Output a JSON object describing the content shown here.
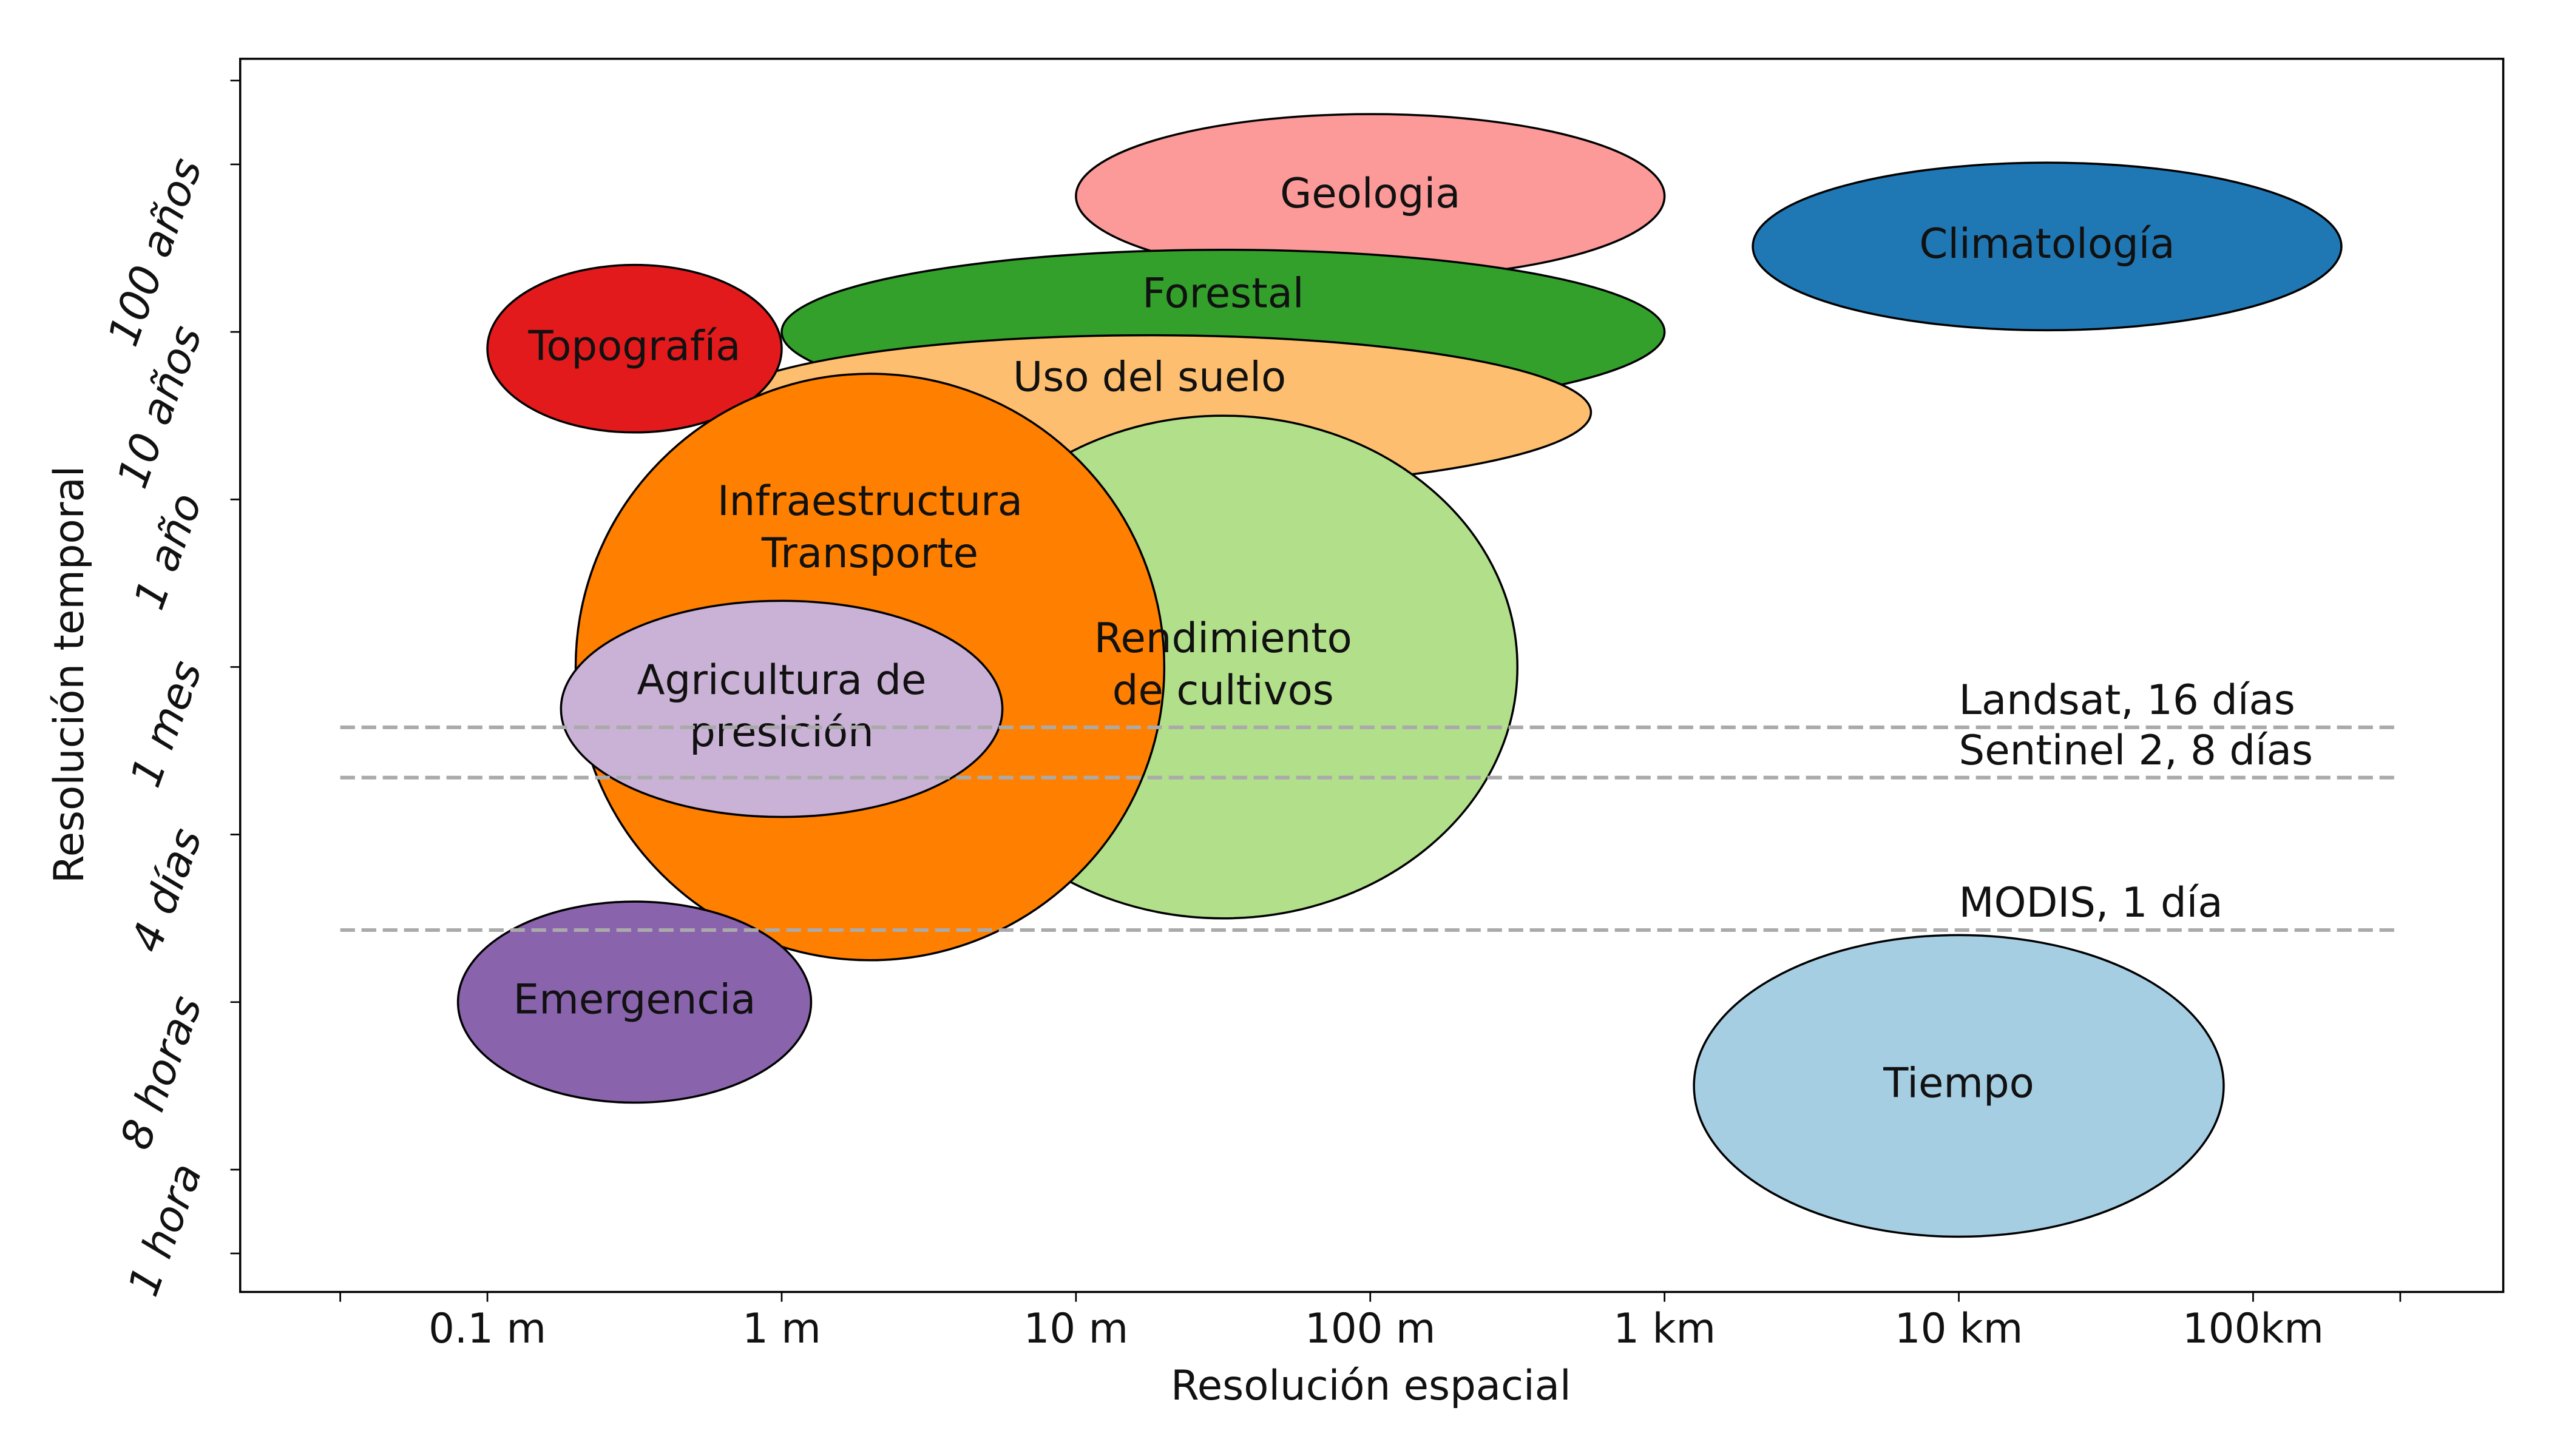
{
  "chart_data": {
    "type": "ellipse",
    "x_label": "Resolución espacial",
    "y_label": "Resolución temporal",
    "xlim": [
      -1.84,
      5.85
    ],
    "ylim": [
      -0.73,
      6.63
    ],
    "xticks": [
      {
        "value": -1,
        "label": "0.1 m"
      },
      {
        "value": 0,
        "label": "1 m"
      },
      {
        "value": 1,
        "label": "10 m"
      },
      {
        "value": 2,
        "label": "100 m"
      },
      {
        "value": 3,
        "label": "1 km"
      },
      {
        "value": 4,
        "label": "10 km"
      },
      {
        "value": 5,
        "label": "100km"
      }
    ],
    "xminorticks": [
      -1.5,
      5.5
    ],
    "yticks": [
      {
        "value": 0,
        "label": "1 hora"
      },
      {
        "value": 1,
        "label": "8 horas"
      },
      {
        "value": 2,
        "label": "4 días"
      },
      {
        "value": 3,
        "label": "1 mes"
      },
      {
        "value": 4,
        "label": "1 año"
      },
      {
        "value": 5,
        "label": "10 años"
      },
      {
        "value": 6,
        "label": "100 años"
      }
    ],
    "yminorticks": [
      -0.5,
      6.5
    ],
    "ellipses": [
      {
        "label": [
          "Geologia"
        ],
        "x": 2,
        "y": 5.81,
        "width": 2,
        "height": 0.98,
        "color": "#fb9a99"
      },
      {
        "label": [
          "Climatología"
        ],
        "x": 4.3,
        "y": 5.51,
        "width": 2,
        "height": 1.0,
        "color": "#1f78b4"
      },
      {
        "label": [
          "Forestal"
        ],
        "x": 1.5,
        "y": 5.0,
        "width": 3,
        "height": 0.98,
        "color": "#33a02c"
      },
      {
        "label": [
          "Uso del suelo"
        ],
        "x": 1.25,
        "y": 4.52,
        "width": 3,
        "height": 0.92,
        "color": "#fdbf6f"
      },
      {
        "label": [
          "Topografía"
        ],
        "x": -0.5,
        "y": 4.9,
        "width": 1,
        "height": 1.0,
        "color": "#e31a1c"
      },
      {
        "label": [
          "Rendimiento",
          "de cultivos"
        ],
        "x": 1.5,
        "y": 3.0,
        "width": 2,
        "height": 3.0,
        "color": "#b2df8a"
      },
      {
        "label": [
          "Infraestructura",
          "Transporte"
        ],
        "x": 0.3,
        "y": 3.0,
        "width": 2,
        "height": 3.5,
        "color": "#ff7f00"
      },
      {
        "label": [
          "Agricultura de",
          "presición"
        ],
        "x": 0,
        "y": 2.75,
        "width": 1.5,
        "height": 1.29,
        "color": "#cab2d6"
      },
      {
        "label": [
          "Emergencia"
        ],
        "x": -0.5,
        "y": 1.0,
        "width": 1.2,
        "height": 1.2,
        "color": "#8a63ad"
      },
      {
        "label": [
          "Tiempo"
        ],
        "x": 4,
        "y": 0.5,
        "width": 1.8,
        "height": 1.8,
        "color": "#a6cee3"
      }
    ],
    "hlines": [
      {
        "label": "Landsat, 16 días",
        "y": 2.64
      },
      {
        "label": "Sentinel 2, 8 días",
        "y": 2.34
      },
      {
        "label": "MODIS, 1 día",
        "y": 1.43
      }
    ],
    "hline_xlim": [
      -1.5,
      5.5
    ],
    "hline_label_x": 4
  }
}
